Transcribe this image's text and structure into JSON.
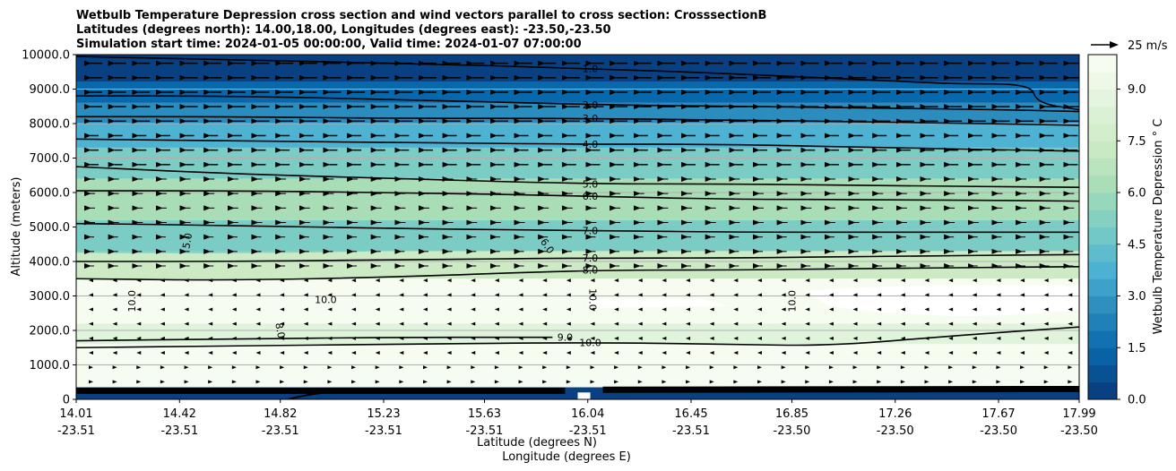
{
  "chart_data": {
    "type": "contour",
    "title_lines": [
      "Wetbulb Temperature Depression cross section and wind vectors parallel to cross section: CrosssectionB",
      "Latitudes (degrees north): 14.00,18.00, Longitudes (degrees east): -23.50,-23.50",
      "Simulation start time: 2024-01-05 00:00:00, Valid time: 2024-01-07 07:00:00"
    ],
    "ylabel": "Altitude (meters)",
    "xlabel_lat": "Latitude (degrees N)",
    "xlabel_lon": "Longitude (degrees E)",
    "ylim": [
      0,
      10000
    ],
    "yticks": [
      "0",
      "1000.0",
      "2000.0",
      "3000.0",
      "4000.0",
      "5000.0",
      "6000.0",
      "7000.0",
      "8000.0",
      "9000.0",
      "10000.0"
    ],
    "xticks_lat": [
      "14.01",
      "14.42",
      "14.82",
      "15.23",
      "15.63",
      "16.04",
      "16.45",
      "16.85",
      "17.26",
      "17.67",
      "17.99"
    ],
    "xticks_lon": [
      "-23.51",
      "-23.51",
      "-23.51",
      "-23.51",
      "-23.51",
      "-23.51",
      "-23.51",
      "-23.50",
      "-23.50",
      "-23.50",
      "-23.50"
    ],
    "grid": "horizontal",
    "colorbar": {
      "label": "Wetbulb Temperature Depression ° C",
      "ticks": [
        "0.0",
        "1.5",
        "3.0",
        "4.5",
        "6.0",
        "7.5",
        "9.0"
      ],
      "range": [
        0,
        10
      ],
      "colormap": [
        "#084081",
        "#0868ac",
        "#2b8cbe",
        "#4eb3d3",
        "#7bccc4",
        "#a8ddb5",
        "#ccebc5",
        "#e0f3db",
        "#f7fcf0"
      ]
    },
    "quiver_key": "25 m/s",
    "contour_labels": [
      {
        "text": "1.0",
        "lat": 16.05,
        "alt": 9600
      },
      {
        "text": "2.0",
        "lat": 16.05,
        "alt": 8550
      },
      {
        "text": "3.0",
        "lat": 16.05,
        "alt": 8150
      },
      {
        "text": "4.0",
        "lat": 16.05,
        "alt": 7400
      },
      {
        "text": "5.0",
        "lat": 16.05,
        "alt": 6250
      },
      {
        "text": "6.0",
        "lat": 16.05,
        "alt": 5900
      },
      {
        "text": "7.0",
        "lat": 16.05,
        "alt": 4900
      },
      {
        "text": "7.0",
        "lat": 16.05,
        "alt": 4100
      },
      {
        "text": "8.0",
        "lat": 16.05,
        "alt": 3750
      },
      {
        "text": "9.0",
        "lat": 15.95,
        "alt": 1800
      },
      {
        "text": "10.0",
        "lat": 16.05,
        "alt": 1650
      },
      {
        "text": "10.0",
        "lat": 15.0,
        "alt": 2900
      },
      {
        "text": "10.0",
        "lat": 14.23,
        "alt": 2850,
        "angle": -90
      },
      {
        "text": "10.0",
        "lat": 16.06,
        "alt": 2900,
        "angle": 90
      },
      {
        "text": "10.0",
        "lat": 16.85,
        "alt": 2850,
        "angle": -90
      },
      {
        "text": "8.0",
        "lat": 14.82,
        "alt": 2000,
        "angle": 80
      },
      {
        "text": "5.0",
        "lat": 14.45,
        "alt": 4600,
        "angle": -80
      },
      {
        "text": "6.0",
        "lat": 15.88,
        "alt": 4450,
        "angle": 55
      }
    ],
    "contours": [
      {
        "level": 1.0,
        "points": [
          [
            14.01,
            9950
          ],
          [
            14.6,
            9850
          ],
          [
            15.3,
            9750
          ],
          [
            16.04,
            9600
          ],
          [
            16.6,
            9450
          ],
          [
            17.2,
            9250
          ],
          [
            17.5,
            9150
          ],
          [
            17.8,
            9150
          ],
          [
            17.82,
            8600
          ],
          [
            17.99,
            8400
          ]
        ]
      },
      {
        "level": 2.0,
        "points": [
          [
            14.01,
            8800
          ],
          [
            14.6,
            8800
          ],
          [
            15.3,
            8700
          ],
          [
            16.04,
            8550
          ],
          [
            16.6,
            8500
          ],
          [
            17.2,
            8450
          ],
          [
            17.7,
            8400
          ],
          [
            17.99,
            8350
          ]
        ]
      },
      {
        "level": 3.0,
        "points": [
          [
            14.01,
            8200
          ],
          [
            14.6,
            8200
          ],
          [
            15.3,
            8150
          ],
          [
            16.04,
            8150
          ],
          [
            16.6,
            8100
          ],
          [
            17.2,
            8050
          ],
          [
            17.99,
            7950
          ]
        ]
      },
      {
        "level": 4.0,
        "points": [
          [
            14.01,
            7550
          ],
          [
            14.6,
            7500
          ],
          [
            15.3,
            7450
          ],
          [
            16.04,
            7400
          ],
          [
            16.6,
            7400
          ],
          [
            17.2,
            7300
          ],
          [
            17.99,
            7200
          ]
        ]
      },
      {
        "level": 5.0,
        "points": [
          [
            14.01,
            6750
          ],
          [
            14.6,
            6550
          ],
          [
            15.3,
            6400
          ],
          [
            16.04,
            6250
          ],
          [
            16.6,
            6250
          ],
          [
            17.2,
            6200
          ],
          [
            17.99,
            6150
          ]
        ]
      },
      {
        "level": 6.0,
        "points": [
          [
            14.01,
            6050
          ],
          [
            14.6,
            6050
          ],
          [
            15.3,
            6000
          ],
          [
            16.04,
            5900
          ],
          [
            16.6,
            5800
          ],
          [
            17.2,
            5800
          ],
          [
            17.99,
            5750
          ]
        ]
      },
      {
        "level": 7.0,
        "points": [
          [
            14.01,
            5100
          ],
          [
            14.6,
            5050
          ],
          [
            15.3,
            4950
          ],
          [
            16.04,
            4900
          ],
          [
            16.6,
            4850
          ],
          [
            17.2,
            4850
          ],
          [
            17.99,
            4850
          ]
        ]
      },
      {
        "level": 7.0,
        "points": [
          [
            14.01,
            4000
          ],
          [
            14.6,
            4000
          ],
          [
            15.3,
            4050
          ],
          [
            16.04,
            4100
          ],
          [
            16.6,
            4100
          ],
          [
            17.2,
            4150
          ],
          [
            17.99,
            4200
          ]
        ]
      },
      {
        "level": 8.0,
        "points": [
          [
            14.01,
            3500
          ],
          [
            14.6,
            3450
          ],
          [
            15.3,
            3550
          ],
          [
            16.04,
            3750
          ],
          [
            16.6,
            3750
          ],
          [
            17.2,
            3800
          ],
          [
            17.99,
            3850
          ]
        ]
      },
      {
        "level": 9.0,
        "points": [
          [
            14.01,
            1700
          ],
          [
            14.6,
            1750
          ],
          [
            15.3,
            1800
          ],
          [
            15.9,
            1800
          ]
        ]
      },
      {
        "level": 10.0,
        "points": [
          [
            14.01,
            1500
          ],
          [
            14.6,
            1550
          ],
          [
            15.3,
            1600
          ],
          [
            16.04,
            1650
          ],
          [
            16.6,
            1600
          ],
          [
            17.0,
            1550
          ],
          [
            17.5,
            1850
          ],
          [
            17.99,
            2100
          ]
        ]
      }
    ]
  }
}
